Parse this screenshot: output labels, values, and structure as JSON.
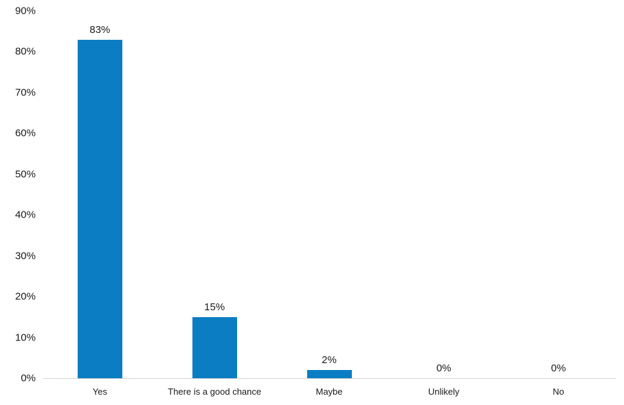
{
  "chart_data": {
    "type": "bar",
    "title": "",
    "xlabel": "",
    "ylabel": "",
    "categories": [
      "Yes",
      "There is a good chance",
      "Maybe",
      "Unlikely",
      "No"
    ],
    "values": [
      83,
      15,
      2,
      0,
      0
    ],
    "value_labels": [
      "83%",
      "15%",
      "2%",
      "0%",
      "0%"
    ],
    "ylim": [
      0,
      90
    ],
    "ytick_step": 10,
    "ytick_labels": [
      "0%",
      "10%",
      "20%",
      "30%",
      "40%",
      "50%",
      "60%",
      "70%",
      "80%",
      "90%"
    ],
    "grid": false,
    "legend_position": "none",
    "colors": {
      "bar": "#0b7dc2",
      "axis_line": "#d6d6d6",
      "text": "#1a1a1a",
      "background": "#ffffff"
    }
  }
}
